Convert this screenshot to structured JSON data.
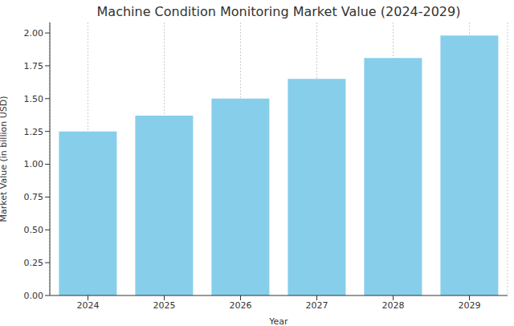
{
  "chart_data": {
    "type": "bar",
    "title": "Machine Condition Monitoring Market Value (2024-2029)",
    "x_label": "Year",
    "y_label": "Market Value (in billion USD)",
    "categories": [
      "2024",
      "2025",
      "2026",
      "2027",
      "2028",
      "2029"
    ],
    "values": [
      1.25,
      1.37,
      1.5,
      1.65,
      1.81,
      1.98
    ],
    "color": "#87ceeb",
    "ylim": [
      0,
      2.08
    ],
    "yticks": [
      {
        "value": 0,
        "label": "0.00"
      },
      {
        "value": 0.25,
        "label": "0.25"
      },
      {
        "value": 0.5,
        "label": "0.50"
      },
      {
        "value": 0.75,
        "label": "0.75"
      },
      {
        "value": 1,
        "label": "1.00"
      },
      {
        "value": 1.25,
        "label": "1.25"
      },
      {
        "value": 1.5,
        "label": "1.50"
      },
      {
        "value": 1.75,
        "label": "1.75"
      },
      {
        "value": 2,
        "label": "2.00"
      }
    ],
    "grid": true
  }
}
